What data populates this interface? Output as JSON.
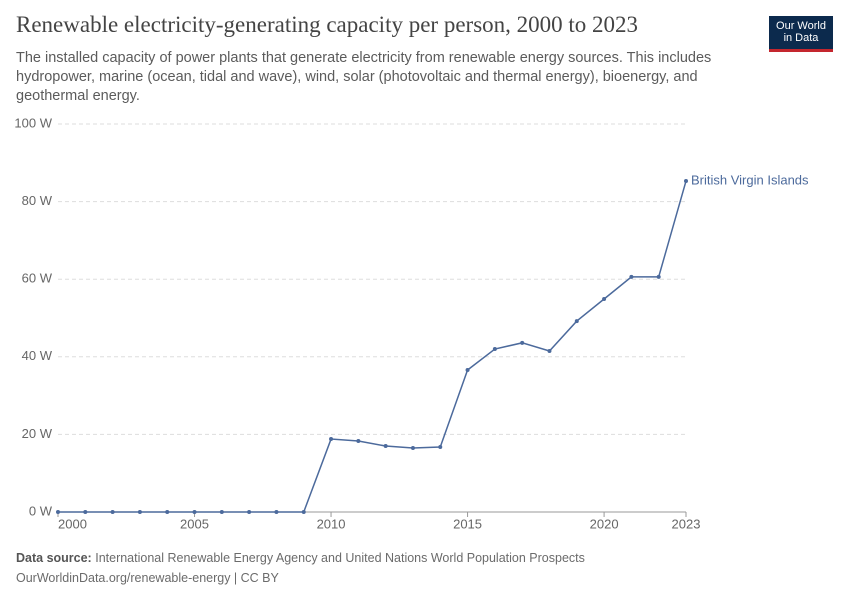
{
  "chart_data": {
    "type": "line",
    "title": "Renewable electricity-generating capacity per person, 2000 to 2023",
    "subtitle": "The installed capacity of power plants that generate electricity from renewable energy sources. This includes hydropower, marine (ocean, tidal and wave), wind, solar (photovoltaic and thermal energy), bioenergy, and geothermal energy.",
    "x": [
      2000,
      2001,
      2002,
      2003,
      2004,
      2005,
      2006,
      2007,
      2008,
      2009,
      2010,
      2011,
      2012,
      2013,
      2014,
      2015,
      2016,
      2017,
      2018,
      2019,
      2020,
      2021,
      2022,
      2023
    ],
    "series": [
      {
        "name": "British Virgin Islands",
        "color": "#4c6a9c",
        "values": [
          0,
          0,
          0,
          0,
          0,
          0,
          0,
          0,
          0,
          0,
          18.8,
          18.3,
          17.0,
          16.5,
          16.75,
          36.6,
          42.0,
          43.6,
          41.5,
          49.2,
          54.9,
          60.6,
          60.6,
          85.3
        ]
      }
    ],
    "xlim": [
      2000,
      2023
    ],
    "xticks": [
      2000,
      2005,
      2010,
      2015,
      2020,
      2023
    ],
    "ylim": [
      0,
      100
    ],
    "yticks": [
      {
        "value": 0,
        "label": "0 W"
      },
      {
        "value": 20,
        "label": "20 W"
      },
      {
        "value": 40,
        "label": "40 W"
      },
      {
        "value": 60,
        "label": "60 W"
      },
      {
        "value": 80,
        "label": "80 W"
      },
      {
        "value": 100,
        "label": "100 W"
      }
    ],
    "grid": true,
    "source_label": "Data source:",
    "source": "International Renewable Energy Agency and United Nations World Population Prospects",
    "url": "OurWorldinData.org/renewable-energy | CC BY"
  },
  "logo": [
    "Our World",
    "in Data"
  ]
}
